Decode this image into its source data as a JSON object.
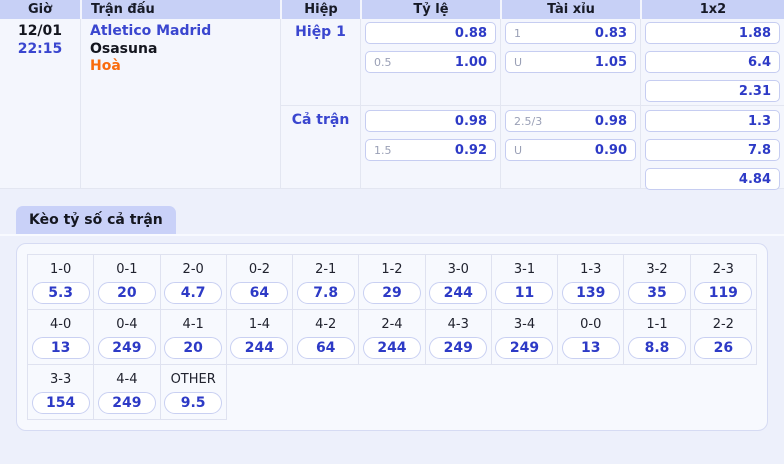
{
  "table": {
    "headers": {
      "gio": "Giờ",
      "tran_dau": "Trận đấu",
      "hiep": "Hiệp",
      "ty_le": "Tỷ lệ",
      "tai_xiu": "Tài xỉu",
      "one_x_two": "1x2"
    }
  },
  "match": {
    "date": "12/01",
    "time": "22:15",
    "home": "Atletico Madrid",
    "away": "Osasuna",
    "draw": "Hoà",
    "period_h1": "Hiệp 1",
    "period_ft": "Cả trận",
    "ty_le": {
      "h1": [
        {
          "line": "",
          "value": "0.88"
        },
        {
          "line": "0.5",
          "value": "1.00"
        }
      ],
      "ft": [
        {
          "line": "",
          "value": "0.98"
        },
        {
          "line": "1.5",
          "value": "0.92"
        }
      ]
    },
    "tai_xiu": {
      "h1": [
        {
          "line": "1",
          "value": "0.83"
        },
        {
          "line": "U",
          "value": "1.05"
        }
      ],
      "ft": [
        {
          "line": "2.5/3",
          "value": "0.98"
        },
        {
          "line": "U",
          "value": "0.90"
        }
      ]
    },
    "one_x_two": {
      "h1": [
        {
          "value": "1.88"
        },
        {
          "value": "6.4"
        },
        {
          "value": "2.31"
        }
      ],
      "ft": [
        {
          "value": "1.3"
        },
        {
          "value": "7.8"
        },
        {
          "value": "4.84"
        }
      ]
    }
  },
  "score_section": {
    "tab_label": "Kèo tỷ số cả trận",
    "row1": [
      {
        "score": "1-0",
        "odds": "5.3"
      },
      {
        "score": "0-1",
        "odds": "20"
      },
      {
        "score": "2-0",
        "odds": "4.7"
      },
      {
        "score": "0-2",
        "odds": "64"
      },
      {
        "score": "2-1",
        "odds": "7.8"
      },
      {
        "score": "1-2",
        "odds": "29"
      },
      {
        "score": "3-0",
        "odds": "244"
      },
      {
        "score": "3-1",
        "odds": "11"
      },
      {
        "score": "1-3",
        "odds": "139"
      },
      {
        "score": "3-2",
        "odds": "35"
      },
      {
        "score": "2-3",
        "odds": "119"
      }
    ],
    "row2": [
      {
        "score": "4-0",
        "odds": "13"
      },
      {
        "score": "0-4",
        "odds": "249"
      },
      {
        "score": "4-1",
        "odds": "20"
      },
      {
        "score": "1-4",
        "odds": "244"
      },
      {
        "score": "4-2",
        "odds": "64"
      },
      {
        "score": "2-4",
        "odds": "244"
      },
      {
        "score": "4-3",
        "odds": "249"
      },
      {
        "score": "3-4",
        "odds": "249"
      },
      {
        "score": "0-0",
        "odds": "13"
      },
      {
        "score": "1-1",
        "odds": "8.8"
      },
      {
        "score": "2-2",
        "odds": "26"
      }
    ],
    "row3": [
      {
        "score": "3-3",
        "odds": "154"
      },
      {
        "score": "4-4",
        "odds": "249"
      },
      {
        "score": "OTHER",
        "odds": "9.5"
      }
    ]
  },
  "colors": {
    "page_bg": "#edf0fb",
    "header_bg": "#c7d0f6",
    "tab_bg": "#c9d1f8",
    "row_bg": "#f4f6fd",
    "panel_bg": "#f7f9fe",
    "odds_blue": "#2d3ac6",
    "link_blue": "#3a46cf",
    "draw_orange": "#f96b0d",
    "box_border": "#c6cdf1",
    "text_dark": "#14161f"
  }
}
